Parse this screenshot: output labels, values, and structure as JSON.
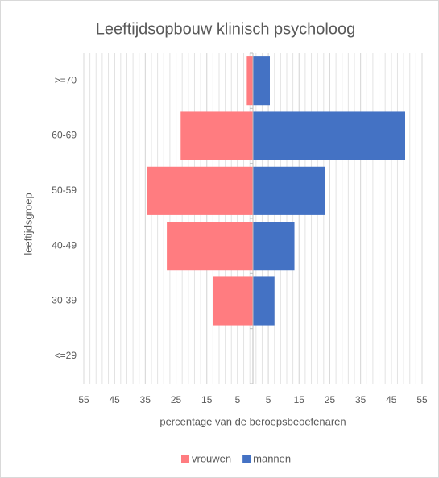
{
  "chart_data": {
    "type": "pyramid",
    "title": "Leeftijdsopbouw klinisch psycholoog",
    "x_label": "percentage van de beroepsbeoefenaren",
    "y_label": "leeftijdsgroep",
    "categories": [
      ">=70",
      "60-69",
      "50-59",
      "40-49",
      "30-39",
      "<=29"
    ],
    "series": [
      {
        "name": "vrouwen",
        "color": "#ff7c80",
        "values": [
          -2,
          -23.5,
          -34.5,
          -28,
          -13,
          0
        ]
      },
      {
        "name": "mannen",
        "color": "#4472c4",
        "values": [
          5.5,
          49.5,
          23.5,
          13.5,
          7,
          0
        ]
      }
    ],
    "xlim": [
      -55,
      55
    ],
    "xticks": [
      {
        "value": -55,
        "label": "55"
      },
      {
        "value": -45,
        "label": "45"
      },
      {
        "value": -35,
        "label": "35"
      },
      {
        "value": -25,
        "label": "25"
      },
      {
        "value": -15,
        "label": "15"
      },
      {
        "value": -5,
        "label": "5"
      },
      5,
      15,
      25,
      35,
      45,
      55
    ],
    "grid": true,
    "minor_grid_step": 2,
    "legend": "bottom"
  }
}
